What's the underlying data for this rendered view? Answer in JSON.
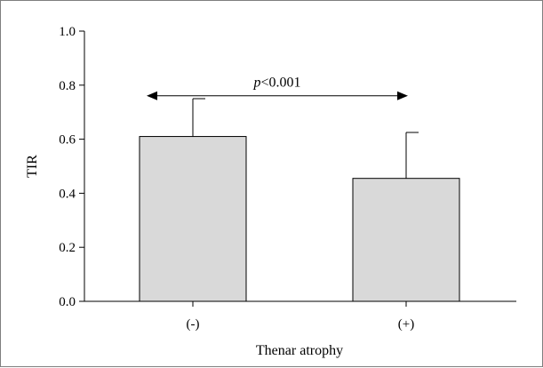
{
  "chart_data": {
    "type": "bar",
    "title": "",
    "xlabel": "Thenar atrophy",
    "ylabel": "TIR",
    "categories": [
      "(-)",
      "(+)"
    ],
    "series": [
      {
        "values": [
          0.61,
          0.455
        ],
        "error_upper": [
          0.14,
          0.17
        ]
      }
    ],
    "ylim": [
      0.0,
      1.0
    ],
    "yticks": [
      0.0,
      0.2,
      0.4,
      0.6,
      0.8,
      1.0
    ],
    "ytick_labels": [
      "0.0",
      "0.2",
      "0.4",
      "0.6",
      "0.8",
      "1.0"
    ],
    "grid": false,
    "bar_color": "#d9d9d9",
    "annotation": {
      "p_prefix": "p",
      "p_suffix": "<0.001",
      "y": 0.82,
      "from_category": "(-)",
      "to_category": "(+)"
    }
  }
}
